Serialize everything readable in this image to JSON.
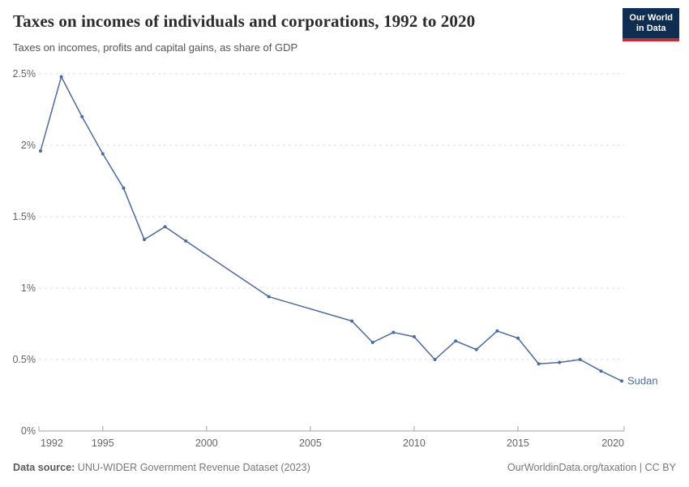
{
  "header": {
    "title": "Taxes on incomes of individuals and corporations, 1992 to 2020",
    "subtitle": "Taxes on incomes, profits and capital gains, as share of GDP",
    "logo": {
      "line1": "Our World",
      "line2": "in Data"
    }
  },
  "chart_data": {
    "type": "line",
    "title": "Taxes on incomes of individuals and corporations, 1992 to 2020",
    "subtitle": "Taxes on incomes, profits and capital gains, as share of GDP",
    "xlabel": "",
    "ylabel": "",
    "xlim": [
      1992,
      2020
    ],
    "ylim": [
      0,
      2.5
    ],
    "x_ticks": [
      1992,
      1995,
      2000,
      2005,
      2010,
      2015,
      2020
    ],
    "y_ticks": [
      {
        "value": 0,
        "label": "0%"
      },
      {
        "value": 0.5,
        "label": "0.5%"
      },
      {
        "value": 1,
        "label": "1%"
      },
      {
        "value": 1.5,
        "label": "1.5%"
      },
      {
        "value": 2,
        "label": "2%"
      },
      {
        "value": 2.5,
        "label": "2.5%"
      }
    ],
    "grid": "horizontal-dashed",
    "legend": "end-of-line-label",
    "series": [
      {
        "name": "Sudan",
        "points": [
          [
            1992,
            1.96
          ],
          [
            1993,
            2.48
          ],
          [
            1994,
            2.2
          ],
          [
            1995,
            1.94
          ],
          [
            1996,
            1.7
          ],
          [
            1997,
            1.34
          ],
          [
            1998,
            1.43
          ],
          [
            1999,
            1.33
          ],
          [
            2003,
            0.94
          ],
          [
            2007,
            0.77
          ],
          [
            2008,
            0.62
          ],
          [
            2009,
            0.69
          ],
          [
            2010,
            0.66
          ],
          [
            2011,
            0.5
          ],
          [
            2012,
            0.63
          ],
          [
            2013,
            0.57
          ],
          [
            2014,
            0.7
          ],
          [
            2015,
            0.65
          ],
          [
            2016,
            0.47
          ],
          [
            2017,
            0.48
          ],
          [
            2018,
            0.5
          ],
          [
            2019,
            0.42
          ],
          [
            2020,
            0.35
          ]
        ]
      }
    ]
  },
  "colors": {
    "line": "#4c6b9e",
    "grid": "#dddddd",
    "axis": "#a1a1a1",
    "tick_label": "#666666",
    "logo_bg": "#0f2d50",
    "logo_red": "#bf2e35"
  },
  "footer": {
    "source_label": "Data source:",
    "source_text": "UNU-WIDER Government Revenue Dataset (2023)",
    "credit": "OurWorldinData.org/taxation | CC BY"
  }
}
